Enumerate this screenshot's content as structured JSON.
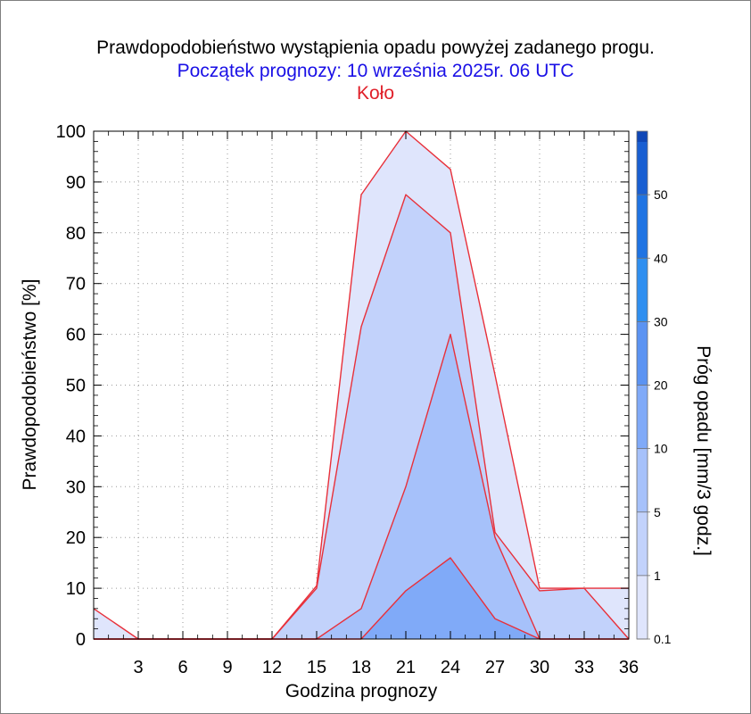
{
  "header": {
    "title": "Prawdopodobieństwo wystąpienia opadu powyżej zadanego progu.",
    "subtitle": "Początek prognozy: 10 września 2025r. 06 UTC",
    "station": "Koło"
  },
  "colors": {
    "title": "#000000",
    "subtitle": "#1a10e6",
    "station": "#e0202a",
    "series_line": "#e8303a",
    "threshold_0_1": "#dfe5fc",
    "threshold_1": "#c2d2fb",
    "threshold_5": "#a6c1fa",
    "threshold_10": "#80aaf8",
    "threshold_20": "#5b93f2",
    "threshold_30": "#2f8ff0",
    "threshold_40": "#1f74e3",
    "threshold_50": "#195fd2",
    "threshold_top": "#0f47b6"
  },
  "chart_data": {
    "type": "area",
    "title": "Prawdopodobieństwo wystąpienia opadu powyżej zadanego progu.",
    "xlabel": "Godzina prognozy",
    "ylabel": "Prawdopodobieństwo [%]",
    "xlim": [
      0,
      36
    ],
    "ylim": [
      0,
      100
    ],
    "x_ticks": [
      3,
      6,
      9,
      12,
      15,
      18,
      21,
      24,
      27,
      30,
      33,
      36
    ],
    "y_ticks": [
      0,
      10,
      20,
      30,
      40,
      50,
      60,
      70,
      80,
      90,
      100
    ],
    "grid": true,
    "x": [
      0,
      3,
      6,
      9,
      12,
      15,
      18,
      21,
      24,
      27,
      30,
      33,
      36
    ],
    "series": [
      {
        "threshold": "0.1",
        "values": [
          6,
          0,
          0,
          0,
          0,
          10.5,
          87.5,
          100,
          92.5,
          52,
          10,
          10,
          10
        ]
      },
      {
        "threshold": "1",
        "values": [
          0,
          0,
          0,
          0,
          0,
          10,
          61.5,
          87.5,
          80,
          21,
          9.5,
          10,
          0
        ]
      },
      {
        "threshold": "5",
        "values": [
          0,
          0,
          0,
          0,
          0,
          0,
          6,
          30,
          60,
          20,
          0,
          0,
          0
        ]
      },
      {
        "threshold": "10",
        "values": [
          0,
          0,
          0,
          0,
          0,
          0,
          0,
          9.5,
          16,
          4,
          0,
          0,
          0
        ]
      }
    ],
    "colorbar": {
      "label": "Próg opadu [mm/3 godz.]",
      "labels": [
        "0.1",
        "1",
        "5",
        "10",
        "20",
        "30",
        "40",
        "50"
      ]
    }
  }
}
